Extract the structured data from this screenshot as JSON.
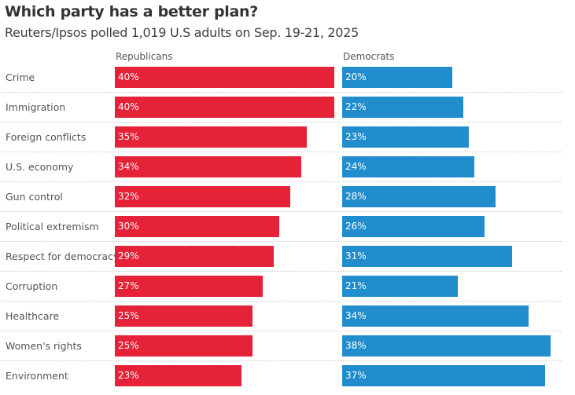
{
  "chart_data": {
    "type": "bar",
    "title": "Which party has a better plan?",
    "subtitle": "Reuters/Ipsos polled 1,019 U.S adults on Sep. 19-21, 2025",
    "categories": [
      "Crime",
      "Immigration",
      "Foreign conflicts",
      "U.S. economy",
      "Gun control",
      "Political extremism",
      "Respect for democracy",
      "Corruption",
      "Healthcare",
      "Women's rights",
      "Environment"
    ],
    "series": [
      {
        "name": "Republicans",
        "color": "#e52237",
        "values": [
          40,
          40,
          35,
          34,
          32,
          30,
          29,
          27,
          25,
          25,
          23
        ],
        "labels": [
          "40%",
          "40%",
          "35%",
          "34%",
          "32%",
          "30%",
          "29%",
          "27%",
          "25%",
          "25%",
          "23%"
        ]
      },
      {
        "name": "Democrats",
        "color": "#218dcd",
        "values": [
          20,
          22,
          23,
          24,
          28,
          26,
          31,
          21,
          34,
          38,
          37
        ],
        "labels": [
          "20%",
          "22%",
          "23%",
          "24%",
          "28%",
          "26%",
          "31%",
          "21%",
          "34%",
          "38%",
          "37%"
        ]
      }
    ],
    "unit": "%",
    "grid": false,
    "legend": "column headers above each panel"
  }
}
